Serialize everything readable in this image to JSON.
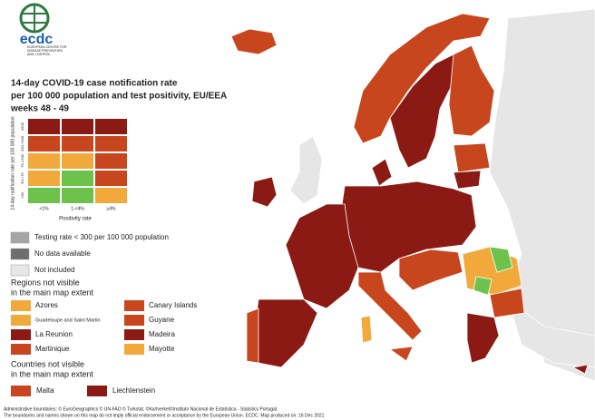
{
  "logo": {
    "name": "ecdc",
    "subtitle": [
      "EUROPEAN CENTRE FOR",
      "DISEASE PREVENTION",
      "AND CONTROL"
    ]
  },
  "title": [
    "14-day COVID-19 case notification rate",
    "per 100 000 population and test positivity, EU/EEA",
    "weeks 48 - 49"
  ],
  "matrix": {
    "y_label": "14-day notification rate per 100 000 population",
    "x_label": "Positivity rate",
    "columns": [
      "<1%",
      "1-<4%",
      "≥4%"
    ],
    "rows": [
      "≥500",
      "200-<500",
      "75-<200",
      "50-<75",
      "<50"
    ],
    "colors": [
      [
        "#8b1a14",
        "#8b1a14",
        "#8b1a14"
      ],
      [
        "#c8461e",
        "#c8461e",
        "#c8461e"
      ],
      [
        "#f2a93b",
        "#f2a93b",
        "#c8461e"
      ],
      [
        "#f2a93b",
        "#6cc24a",
        "#c8461e"
      ],
      [
        "#6cc24a",
        "#6cc24a",
        "#f2a93b"
      ]
    ]
  },
  "legend": [
    {
      "label": "Testing rate < 300 per 100 000 population",
      "color": "#a6a6a6"
    },
    {
      "label": "No data available",
      "color": "#6e6e6e"
    },
    {
      "label": "Not included",
      "color": "#e6e6e6"
    }
  ],
  "regions": {
    "heading": [
      "Regions not visible",
      "in the main map extent"
    ],
    "items": [
      {
        "label": "Azores",
        "color": "#f2a93b"
      },
      {
        "label": "Canary Islands",
        "color": "#c8461e"
      },
      {
        "label": "Guadeloupe and Saint Martin",
        "color": "#f2a93b"
      },
      {
        "label": "Guyane",
        "color": "#c8461e"
      },
      {
        "label": "La Reunion",
        "color": "#8b1a14"
      },
      {
        "label": "Madeira",
        "color": "#8b1a14"
      },
      {
        "label": "Martinique",
        "color": "#c8461e"
      },
      {
        "label": "Mayotte",
        "color": "#f2a93b"
      }
    ]
  },
  "countries": {
    "heading": [
      "Countries not visible",
      "in the main map extent"
    ],
    "items": [
      {
        "label": "Malta",
        "color": "#c8461e"
      },
      {
        "label": "Liechtenstein",
        "color": "#8b1a14"
      }
    ]
  },
  "footer": [
    "Administrative boundaries: © EuroGeographics © UN-FAO © Turkstat. ©Kartverket©Instituto Nacional de Estatística - Statistics Portugal.",
    "The boundaries and names shown on this map do not imply official endorsement or acceptance by the European Union. ECDC. Map produced on: 16 Dec 2021"
  ]
}
